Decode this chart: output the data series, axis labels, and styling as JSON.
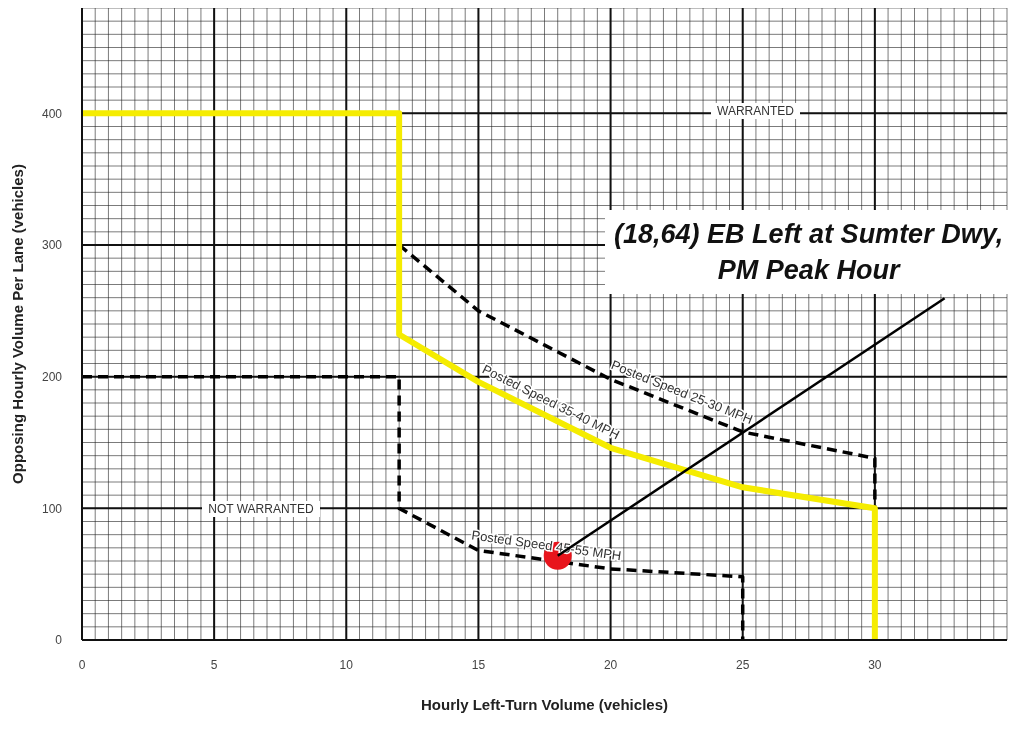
{
  "chart_data": {
    "type": "line",
    "xlabel": "Hourly Left-Turn Volume (vehicles)",
    "ylabel": "Opposing Hourly Volume Per Lane (vehicles)",
    "xlim": [
      0,
      35
    ],
    "xticks": [
      0,
      5,
      10,
      15,
      20,
      25,
      30
    ],
    "ylim": [
      0,
      480
    ],
    "yticks": [
      0,
      100,
      200,
      300,
      400
    ],
    "grid": true,
    "series": [
      {
        "name": "Posted Speed 25-30 MPH",
        "color": "#000000",
        "line_style": "dashed",
        "marker": "none",
        "x": [
          12,
          15,
          20,
          25,
          30,
          30
        ],
        "values": [
          300,
          250,
          198,
          158,
          138,
          100
        ]
      },
      {
        "name": "Posted Speed 35-40 MPH",
        "color": "#f5ec00",
        "line_style": "solid",
        "marker": "none",
        "x": [
          0,
          12,
          12,
          15,
          20,
          25,
          30,
          30
        ],
        "values": [
          400,
          400,
          232,
          196,
          146,
          116,
          100,
          0
        ]
      },
      {
        "name": "Posted Speed 45-55 MPH",
        "color": "#000000",
        "line_style": "dashed",
        "marker": "none",
        "x": [
          0,
          12,
          12,
          15,
          20,
          25,
          25
        ],
        "values": [
          200,
          200,
          100,
          68,
          54,
          48,
          0
        ]
      },
      {
        "type": "scatter",
        "color": "#e8141c",
        "marker": "circle",
        "x": [
          18
        ],
        "values": [
          64
        ]
      }
    ],
    "annotations": [
      "WARRANTED",
      "NOT WARRANTED",
      {
        "text": "(18,64) EB Left at Sumter Dwy, PM Peak Hour",
        "x": 18,
        "y": 64
      }
    ]
  }
}
